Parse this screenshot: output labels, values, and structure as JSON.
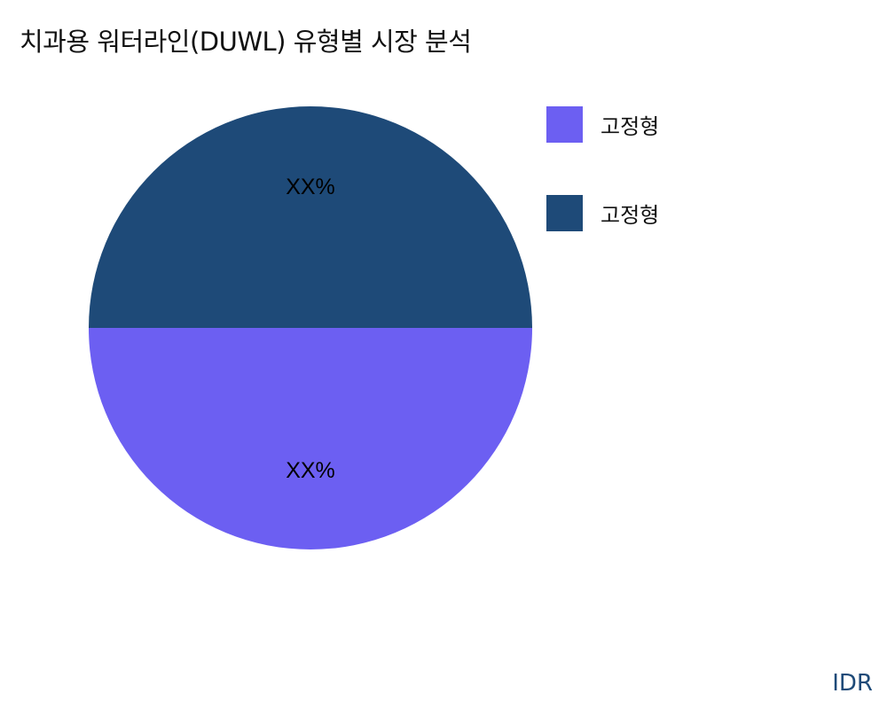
{
  "chart_data": {
    "type": "pie",
    "title": "치과용 워터라인(DUWL) 유형별 시장 분석",
    "legend_position": "right",
    "slices": [
      {
        "label": "고정형",
        "value": 50,
        "data_label": "XX%",
        "color": "#6c5ff2"
      },
      {
        "label": "고정형",
        "value": 50,
        "data_label": "XX%",
        "color": "#1e4a78"
      }
    ]
  },
  "watermark": "IDR"
}
